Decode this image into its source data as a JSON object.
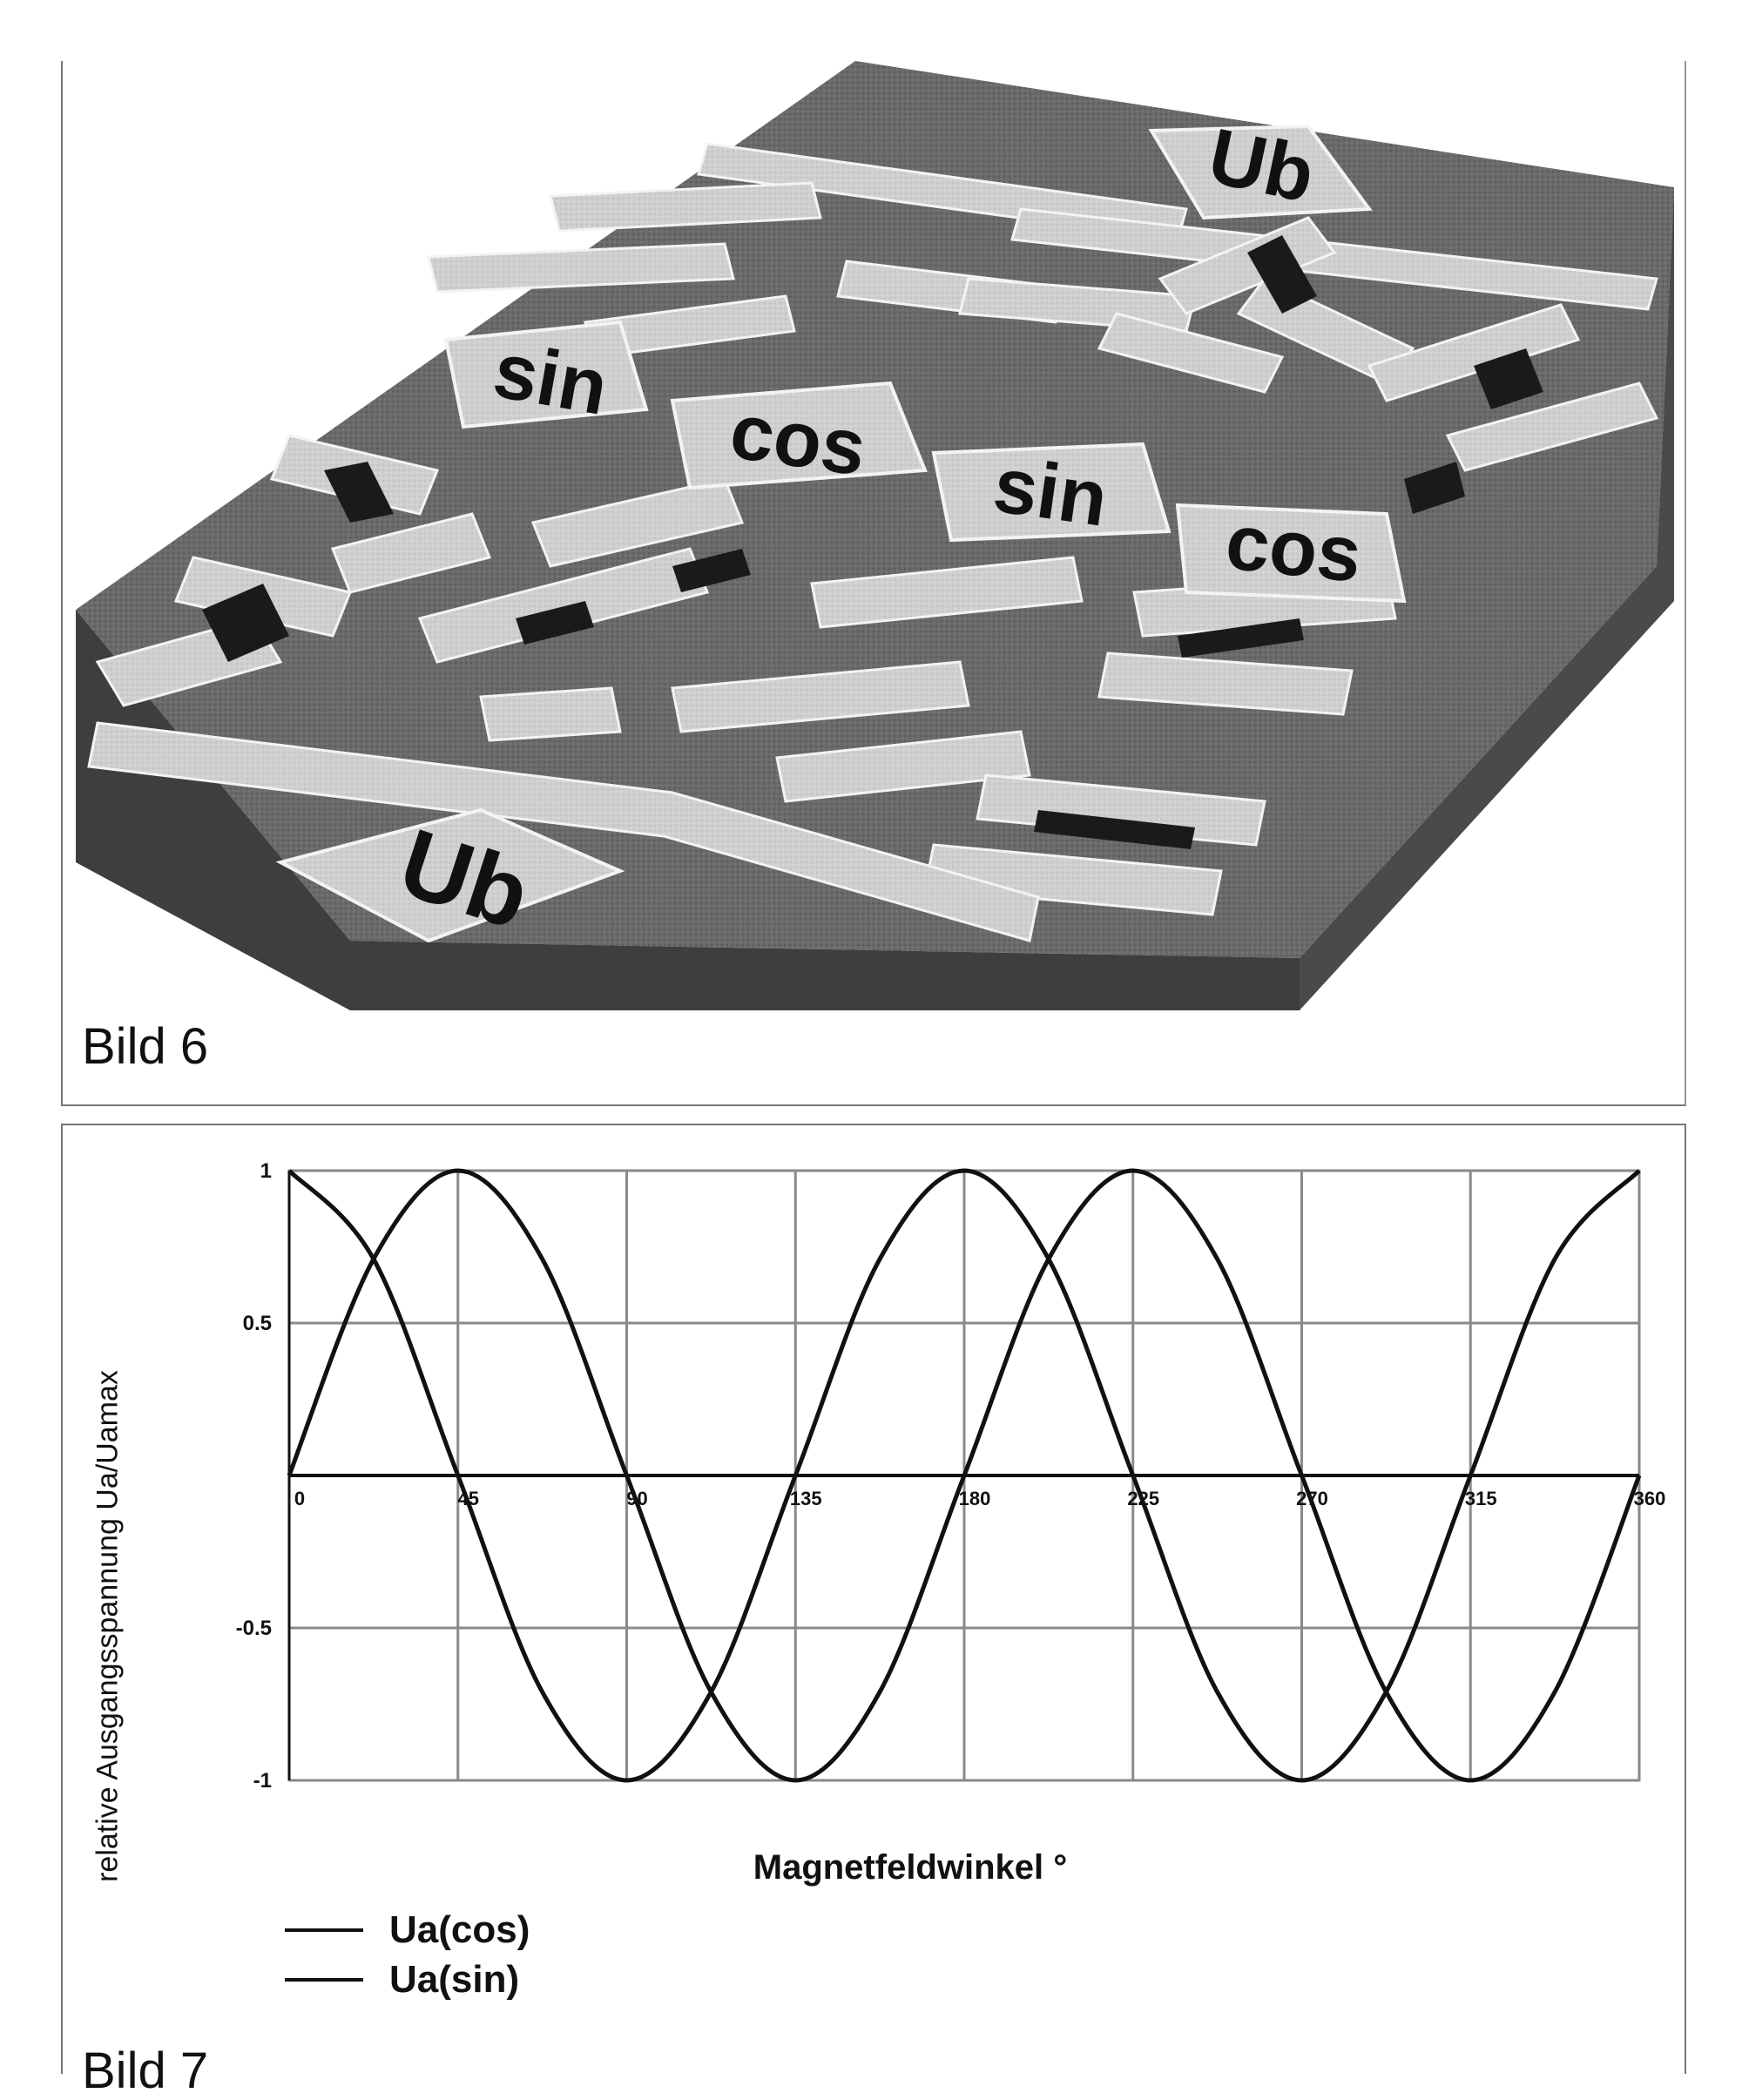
{
  "figure6": {
    "caption": "Bild 6",
    "labels": {
      "ub_top": "Ub",
      "ub_bottom": "Ub",
      "sin_left": "sin",
      "cos_left": "cos",
      "sin_right": "sin",
      "cos_right": "cos"
    }
  },
  "figure7": {
    "caption": "Bild 7",
    "xlabel": "Magnetfeldwinkel °",
    "ylabel": "relative Ausgangsspannung Ua/Uamax",
    "legend": [
      "Ua(cos)",
      "Ua(sin)"
    ]
  },
  "chart_data": {
    "type": "line",
    "xlabel": "Magnetfeldwinkel °",
    "ylabel": "relative Ausgangsspannung Ua/Uamax",
    "xlim": [
      0,
      360
    ],
    "ylim": [
      -1,
      1
    ],
    "x_ticks": [
      "0",
      "45",
      "90",
      "135",
      "180",
      "225",
      "270",
      "315",
      "360"
    ],
    "y_ticks": [
      "1",
      "0.5",
      "-0.5",
      "-1"
    ],
    "grid": true,
    "legend_position": "bottom-left",
    "series": [
      {
        "name": "Ua(cos)",
        "x": [
          0,
          22.5,
          45,
          67.5,
          90,
          112.5,
          135,
          157.5,
          180,
          202.5,
          225,
          247.5,
          270,
          292.5,
          315,
          337.5,
          360
        ],
        "y": [
          1,
          0.71,
          0,
          -0.71,
          -1,
          -0.71,
          0,
          0.71,
          1,
          0.71,
          0,
          -0.71,
          -1,
          -0.71,
          0,
          0.71,
          1
        ]
      },
      {
        "name": "Ua(sin)",
        "x": [
          0,
          22.5,
          45,
          67.5,
          90,
          112.5,
          135,
          157.5,
          180,
          202.5,
          225,
          247.5,
          270,
          292.5,
          315,
          337.5,
          360
        ],
        "y": [
          0,
          0.71,
          1,
          0.71,
          0,
          -0.71,
          -1,
          -0.71,
          0,
          0.71,
          1,
          0.71,
          0,
          -0.71,
          -1,
          -0.71,
          0
        ]
      }
    ]
  }
}
